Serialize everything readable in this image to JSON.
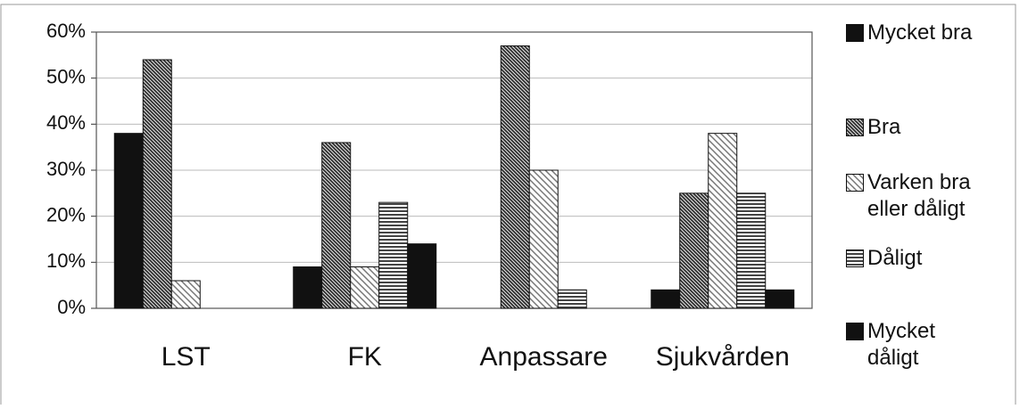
{
  "chart_data": {
    "type": "bar",
    "categories": [
      "LST",
      "FK",
      "Anpassare",
      "Sjukvården"
    ],
    "series": [
      {
        "name": "Mycket bra",
        "color": "#111111",
        "pattern": "solid",
        "values": [
          38,
          9,
          0,
          4
        ]
      },
      {
        "name": "Bra",
        "color": "#333333",
        "pattern": "dense-diagonal",
        "values": [
          54,
          36,
          57,
          25
        ]
      },
      {
        "name": "Varken bra eller dåligt",
        "color": "#777777",
        "pattern": "light-diagonal",
        "values": [
          6,
          9,
          30,
          38
        ]
      },
      {
        "name": "Dåligt",
        "color": "#444444",
        "pattern": "horizontal",
        "values": [
          0,
          23,
          4,
          25
        ]
      },
      {
        "name": "Mycket dåligt",
        "color": "#111111",
        "pattern": "solid",
        "values": [
          0,
          14,
          0,
          4
        ]
      }
    ],
    "ylim": [
      0,
      60
    ],
    "yticks": [
      {
        "value": 0,
        "label": "0%"
      },
      {
        "value": 10,
        "label": "10%"
      },
      {
        "value": 20,
        "label": "20%"
      },
      {
        "value": 30,
        "label": "30%"
      },
      {
        "value": 40,
        "label": "40%"
      },
      {
        "value": 50,
        "label": "50%"
      },
      {
        "value": 60,
        "label": "60%"
      }
    ],
    "grid": true,
    "legend": "right"
  }
}
